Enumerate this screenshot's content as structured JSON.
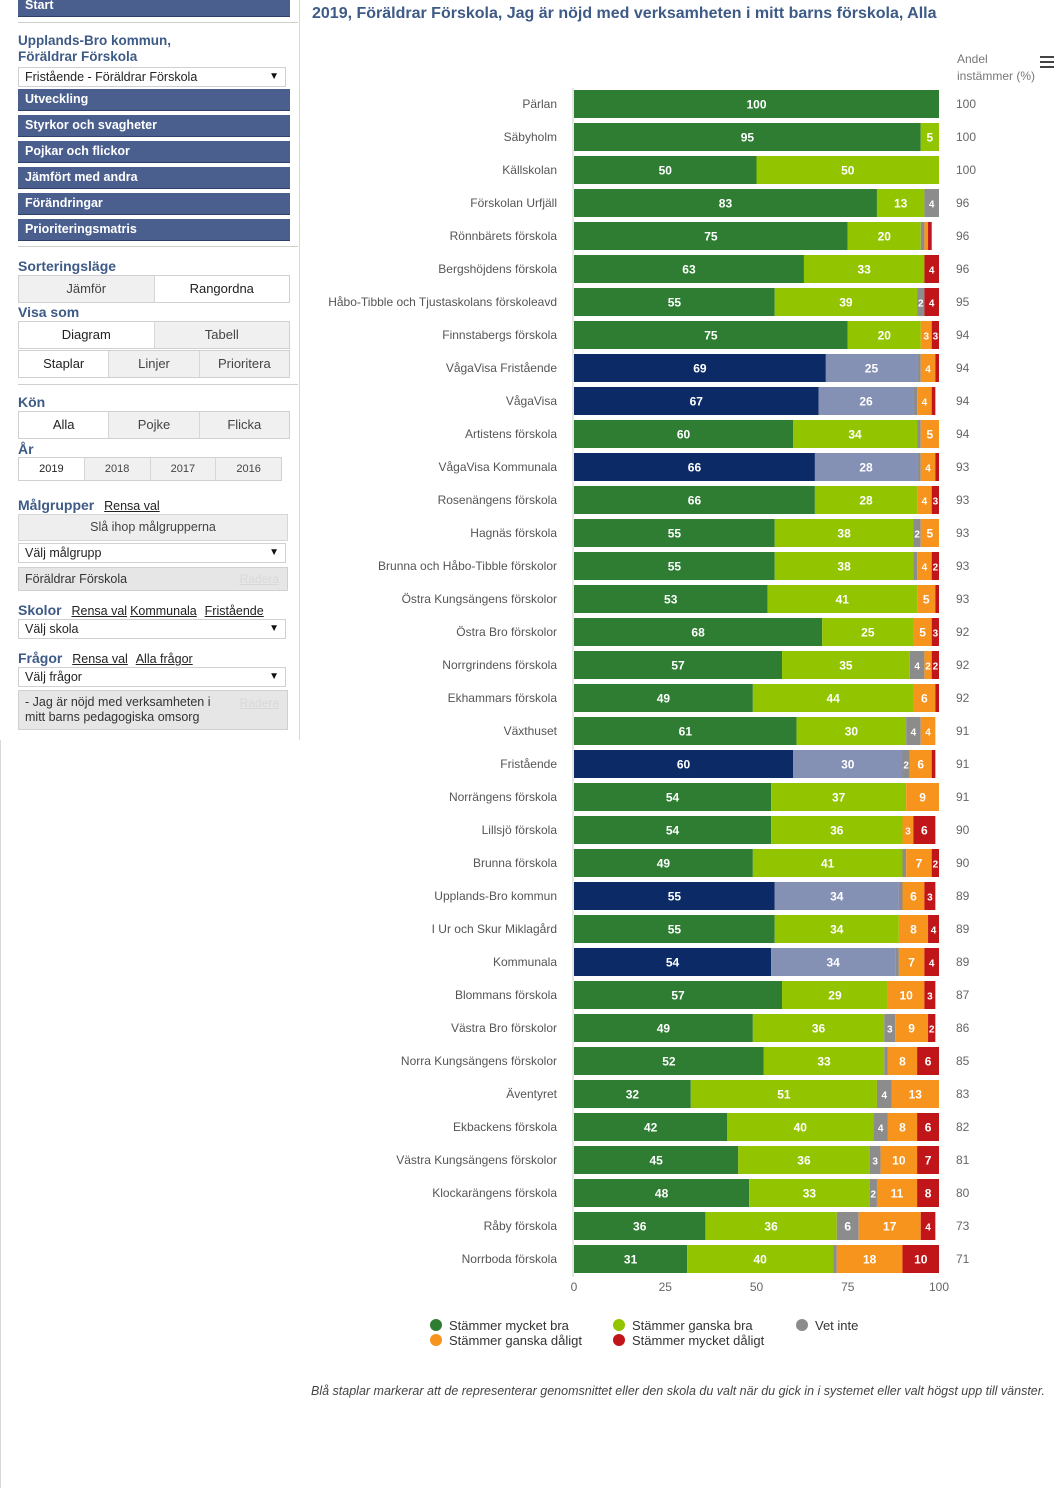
{
  "sidebar": {
    "start_label": "Start",
    "org_title": "Upplands-Bro kommun,\nFöräldrar Förskola",
    "org_select_value": "Fristående - Föräldrar Förskola",
    "nav_items": [
      "Utveckling",
      "Styrkor och svagheter",
      "Pojkar och flickor",
      "Jämfört med andra",
      "Förändringar",
      "Prioriteringsmatris"
    ],
    "sort_title": "Sorteringsläge",
    "sort_options": [
      "Jämför",
      "Rangordna"
    ],
    "view_title": "Visa som",
    "view_options": [
      "Diagram",
      "Tabell"
    ],
    "chart_options": [
      "Staplar",
      "Linjer",
      "Prioritera"
    ],
    "gender_title": "Kön",
    "gender_options": [
      "Alla",
      "Pojke",
      "Flicka"
    ],
    "year_title": "År",
    "year_options": [
      "2019",
      "2018",
      "2017",
      "2016"
    ],
    "groups_title": "Målgrupper",
    "groups_clear": "Rensa val",
    "groups_merge": "Slå ihop målgrupperna",
    "groups_select": "Välj målgrupp",
    "groups_chosen": "Föräldrar Förskola",
    "remove_label": "Radera",
    "schools_title": "Skolor",
    "schools_clear": "Rensa val",
    "schools_municipal": "Kommunala",
    "schools_independent": "Fristående",
    "schools_select": "Välj skola",
    "questions_title": "Frågor",
    "questions_clear": "Rensa val",
    "questions_all": "Alla frågor",
    "questions_select": "Välj frågor",
    "questions_chosen": "- Jag är nöjd med verksamheten i mitt barns pedagogiska omsorg"
  },
  "page_title": "2019, Föräldrar Förskola, Jag är nöjd med verksamheten i mitt barns förskola, Alla",
  "andel_header": "Andel\ninstämmer (%)",
  "footnote": "Blå staplar markerar att de representerar genomsnittet eller den skola du valt när du gick in i systemet eller valt högst upp till vänster.",
  "colors": {
    "mycket_bra": "#2e7d32",
    "ganska_bra": "#92c500",
    "vet_inte": "#8c8c8c",
    "ganska_daligt": "#f7941d",
    "mycket_daligt": "#c0161a",
    "avg_bra": "#0b2a66",
    "avg_ganska": "#8590b5",
    "title_blue": "#3e5a86",
    "nav_bg": "#4a5f8e"
  },
  "chart_data": {
    "type": "bar",
    "orientation": "horizontal-stacked",
    "title": "2019, Föräldrar Förskola, Jag är nöjd med verksamheten i mitt barns förskola, Alla",
    "xlim": [
      0,
      100
    ],
    "xticks": [
      0,
      25,
      50,
      75,
      100
    ],
    "series_names": [
      "Stämmer mycket bra",
      "Stämmer ganska bra",
      "Vet inte",
      "Stämmer ganska dåligt",
      "Stämmer mycket dåligt"
    ],
    "legend_position": "bottom",
    "rows": [
      {
        "label": "Pärlan",
        "values": [
          100,
          0,
          0,
          0,
          0
        ],
        "andel": 100,
        "avg": false
      },
      {
        "label": "Säbyholm",
        "values": [
          95,
          5,
          0,
          0,
          0
        ],
        "andel": 100,
        "avg": false
      },
      {
        "label": "Källskolan",
        "values": [
          50,
          50,
          0,
          0,
          0
        ],
        "andel": 100,
        "avg": false
      },
      {
        "label": "Förskolan Urfjäll",
        "values": [
          83,
          13,
          4,
          0,
          0
        ],
        "andel": 96,
        "avg": false
      },
      {
        "label": "Rönnbärets förskola",
        "values": [
          75,
          20,
          1,
          1,
          1
        ],
        "andel": 96,
        "avg": false
      },
      {
        "label": "Bergshöjdens förskola",
        "values": [
          63,
          33,
          0,
          0,
          4
        ],
        "andel": 96,
        "avg": false
      },
      {
        "label": "Håbo-Tibble och Tjustaskolans förskoleavd",
        "values": [
          55,
          39,
          2,
          0,
          4
        ],
        "andel": 95,
        "avg": false
      },
      {
        "label": "Finnstabergs förskola",
        "values": [
          75,
          20,
          0,
          3,
          3
        ],
        "andel": 94,
        "avg": false
      },
      {
        "label": "VågaVisa Fristående",
        "values": [
          69,
          25,
          1,
          4,
          1
        ],
        "andel": 94,
        "avg": true
      },
      {
        "label": "VågaVisa",
        "values": [
          67,
          26,
          1,
          4,
          1
        ],
        "andel": 94,
        "avg": true
      },
      {
        "label": "Artistens förskola",
        "values": [
          60,
          34,
          1,
          5,
          0
        ],
        "andel": 94,
        "avg": false
      },
      {
        "label": "VågaVisa Kommunala",
        "values": [
          66,
          28,
          1,
          4,
          1
        ],
        "andel": 93,
        "avg": true
      },
      {
        "label": "Rosenängens förskola",
        "values": [
          66,
          28,
          0,
          4,
          3
        ],
        "andel": 93,
        "avg": false
      },
      {
        "label": "Hagnäs förskola",
        "values": [
          55,
          38,
          2,
          5,
          0
        ],
        "andel": 93,
        "avg": false
      },
      {
        "label": "Brunna och Håbo-Tibble förskolor",
        "values": [
          55,
          38,
          1,
          4,
          2
        ],
        "andel": 93,
        "avg": false
      },
      {
        "label": "Östra Kungsängens förskolor",
        "values": [
          53,
          41,
          0,
          5,
          2
        ],
        "andel": 93,
        "avg": false
      },
      {
        "label": "Östra Bro förskolor",
        "values": [
          68,
          25,
          0,
          5,
          3
        ],
        "andel": 92,
        "avg": false
      },
      {
        "label": "Norrgrindens förskola",
        "values": [
          57,
          35,
          4,
          2,
          2
        ],
        "andel": 92,
        "avg": false
      },
      {
        "label": "Ekhammars förskola",
        "values": [
          49,
          44,
          0,
          6,
          1
        ],
        "andel": 92,
        "avg": false
      },
      {
        "label": "Växthuset",
        "values": [
          61,
          30,
          4,
          4,
          0
        ],
        "andel": 91,
        "avg": false
      },
      {
        "label": "Fristående",
        "values": [
          60,
          30,
          2,
          6,
          1
        ],
        "andel": 91,
        "avg": true
      },
      {
        "label": "Norrängens förskola",
        "values": [
          54,
          37,
          0,
          9,
          0
        ],
        "andel": 91,
        "avg": false
      },
      {
        "label": "Lillsjö förskola",
        "values": [
          54,
          36,
          0,
          3,
          6
        ],
        "andel": 90,
        "avg": false
      },
      {
        "label": "Brunna förskola",
        "values": [
          49,
          41,
          1,
          7,
          2
        ],
        "andel": 90,
        "avg": false
      },
      {
        "label": "Upplands-Bro kommun",
        "values": [
          55,
          34,
          1,
          6,
          3
        ],
        "andel": 89,
        "avg": true
      },
      {
        "label": "I Ur och Skur Miklagård",
        "values": [
          55,
          34,
          0,
          8,
          4
        ],
        "andel": 89,
        "avg": false
      },
      {
        "label": "Kommunala",
        "values": [
          54,
          34,
          1,
          7,
          4
        ],
        "andel": 89,
        "avg": true
      },
      {
        "label": "Blommans förskola",
        "values": [
          57,
          29,
          0,
          10,
          3
        ],
        "andel": 87,
        "avg": false
      },
      {
        "label": "Västra Bro förskolor",
        "values": [
          49,
          36,
          3,
          9,
          2
        ],
        "andel": 86,
        "avg": false
      },
      {
        "label": "Norra Kungsängens förskolor",
        "values": [
          52,
          33,
          1,
          8,
          6
        ],
        "andel": 85,
        "avg": false
      },
      {
        "label": "Äventyret",
        "values": [
          32,
          51,
          4,
          13,
          0
        ],
        "andel": 83,
        "avg": false
      },
      {
        "label": "Ekbackens förskola",
        "values": [
          42,
          40,
          4,
          8,
          6
        ],
        "andel": 82,
        "avg": false
      },
      {
        "label": "Västra Kungsängens förskolor",
        "values": [
          45,
          36,
          3,
          10,
          7
        ],
        "andel": 81,
        "avg": false
      },
      {
        "label": "Klockarängens förskola",
        "values": [
          48,
          33,
          2,
          11,
          8
        ],
        "andel": 80,
        "avg": false
      },
      {
        "label": "Råby förskola",
        "values": [
          36,
          36,
          6,
          17,
          4
        ],
        "andel": 73,
        "avg": false
      },
      {
        "label": "Norrboda förskola",
        "values": [
          31,
          40,
          1,
          18,
          10
        ],
        "andel": 71,
        "avg": false
      }
    ]
  }
}
